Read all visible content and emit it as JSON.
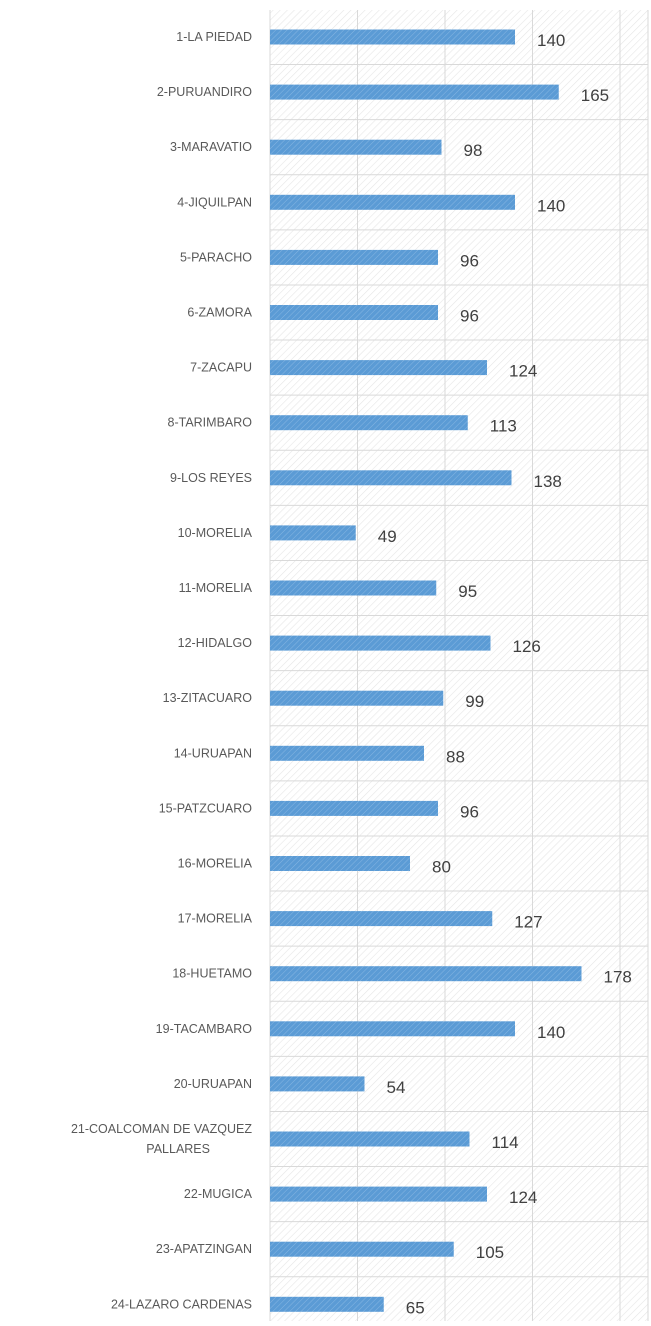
{
  "chart_data": {
    "type": "bar",
    "orientation": "horizontal",
    "title": "",
    "xlabel": "",
    "ylabel": "",
    "categories": [
      "1-LA PIEDAD",
      "2-PURUANDIRO",
      "3-MARAVATIO",
      "4-JIQUILPAN",
      "5-PARACHO",
      "6-ZAMORA",
      "7-ZACAPU",
      "8-TARIMBARO",
      "9-LOS REYES",
      "10-MORELIA",
      "11-MORELIA",
      "12-HIDALGO",
      "13-ZITACUARO",
      "14-URUAPAN",
      "15-PATZCUARO",
      "16-MORELIA",
      "17-MORELIA",
      "18-HUETAMO",
      "19-TACAMBARO",
      "20-URUAPAN",
      "21-COALCOMAN DE VAZQUEZ PALLARES",
      "22-MUGICA",
      "23-APATZINGAN",
      "24-LAZARO CARDENAS"
    ],
    "values": [
      140,
      165,
      98,
      140,
      96,
      96,
      124,
      113,
      138,
      49,
      95,
      126,
      99,
      88,
      96,
      80,
      127,
      178,
      140,
      54,
      114,
      124,
      105,
      65
    ],
    "xlim": [
      0,
      200
    ],
    "grid": true,
    "legend": "none",
    "data_labels": true,
    "tick_labels_visible": false
  },
  "colors": {
    "bar_fill": "#5b9bd5",
    "bar_hatch": "#7fb1df",
    "grid_line": "#d9d9d9",
    "plot_hatch": "#e3e3e3",
    "category_text": "#595959",
    "value_text": "#404040"
  }
}
